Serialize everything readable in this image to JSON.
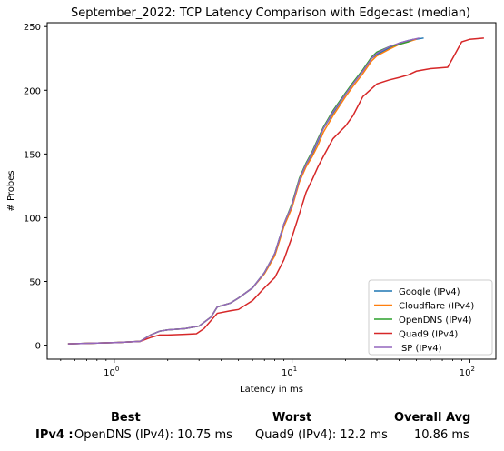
{
  "chart_data": {
    "type": "line",
    "title": "September_2022: TCP Latency Comparison with Edgecast (median)",
    "xlabel": "Latency in ms",
    "ylabel": "# Probes",
    "xscale": "log",
    "xlim": [
      0.42,
      140
    ],
    "ylim": [
      -11,
      253
    ],
    "xticks": [
      {
        "value": 1,
        "base": "10",
        "exp": "0"
      },
      {
        "value": 10,
        "base": "10",
        "exp": "1"
      },
      {
        "value": 100,
        "base": "10",
        "exp": "2"
      }
    ],
    "yticks": [
      0,
      50,
      100,
      150,
      200,
      250
    ],
    "grid": false,
    "legend_position": "lower-right",
    "series": [
      {
        "name": "Google (IPv4)",
        "color": "#1f77b4",
        "points": [
          [
            0.55,
            1
          ],
          [
            1.0,
            2
          ],
          [
            1.4,
            3
          ],
          [
            1.6,
            8
          ],
          [
            1.8,
            11
          ],
          [
            2.0,
            12
          ],
          [
            2.5,
            13
          ],
          [
            3.0,
            15
          ],
          [
            3.5,
            22
          ],
          [
            3.8,
            30
          ],
          [
            4.5,
            33
          ],
          [
            5.0,
            37
          ],
          [
            6.0,
            45
          ],
          [
            7.0,
            57
          ],
          [
            8.0,
            72
          ],
          [
            9.0,
            95
          ],
          [
            10.0,
            110
          ],
          [
            11.0,
            130
          ],
          [
            12.0,
            142
          ],
          [
            13.0,
            150
          ],
          [
            14.0,
            160
          ],
          [
            15.0,
            170
          ],
          [
            17.0,
            182
          ],
          [
            20.0,
            197
          ],
          [
            22.0,
            205
          ],
          [
            25.0,
            215
          ],
          [
            28.0,
            225
          ],
          [
            30.0,
            228
          ],
          [
            35.0,
            233
          ],
          [
            40.0,
            237
          ],
          [
            45.0,
            239
          ],
          [
            55.0,
            241
          ]
        ]
      },
      {
        "name": "Cloudflare (IPv4)",
        "color": "#ff7f0e",
        "points": [
          [
            0.55,
            1
          ],
          [
            1.0,
            2
          ],
          [
            1.4,
            3
          ],
          [
            1.6,
            8
          ],
          [
            1.8,
            11
          ],
          [
            2.0,
            12
          ],
          [
            2.5,
            13
          ],
          [
            3.0,
            15
          ],
          [
            3.5,
            22
          ],
          [
            3.8,
            30
          ],
          [
            4.5,
            33
          ],
          [
            5.0,
            37
          ],
          [
            6.0,
            45
          ],
          [
            7.0,
            56
          ],
          [
            8.0,
            70
          ],
          [
            9.0,
            93
          ],
          [
            10.0,
            108
          ],
          [
            11.0,
            128
          ],
          [
            12.0,
            140
          ],
          [
            13.0,
            148
          ],
          [
            14.0,
            157
          ],
          [
            15.0,
            167
          ],
          [
            17.0,
            180
          ],
          [
            20.0,
            195
          ],
          [
            22.0,
            203
          ],
          [
            25.0,
            213
          ],
          [
            28.0,
            223
          ],
          [
            30.0,
            227
          ],
          [
            35.0,
            232
          ],
          [
            40.0,
            236
          ],
          [
            45.0,
            238
          ],
          [
            50.0,
            240
          ]
        ]
      },
      {
        "name": "OpenDNS (IPv4)",
        "color": "#2ca02c",
        "points": [
          [
            0.55,
            1
          ],
          [
            1.0,
            2
          ],
          [
            1.4,
            3
          ],
          [
            1.6,
            8
          ],
          [
            1.8,
            11
          ],
          [
            2.0,
            12
          ],
          [
            2.5,
            13
          ],
          [
            3.0,
            15
          ],
          [
            3.5,
            22
          ],
          [
            3.8,
            30
          ],
          [
            4.5,
            33
          ],
          [
            5.0,
            37
          ],
          [
            6.0,
            45
          ],
          [
            7.0,
            57
          ],
          [
            8.0,
            72
          ],
          [
            9.0,
            95
          ],
          [
            10.0,
            111
          ],
          [
            11.0,
            131
          ],
          [
            12.0,
            143
          ],
          [
            13.0,
            152
          ],
          [
            14.0,
            162
          ],
          [
            15.0,
            171
          ],
          [
            17.0,
            184
          ],
          [
            20.0,
            198
          ],
          [
            22.0,
            206
          ],
          [
            25.0,
            216
          ],
          [
            28.0,
            226
          ],
          [
            30.0,
            230
          ],
          [
            35.0,
            234
          ],
          [
            40.0,
            236
          ],
          [
            45.0,
            238
          ],
          [
            48.0,
            240
          ]
        ]
      },
      {
        "name": "Quad9 (IPv4)",
        "color": "#d62728",
        "points": [
          [
            0.55,
            1
          ],
          [
            1.0,
            2
          ],
          [
            1.4,
            3
          ],
          [
            1.6,
            6
          ],
          [
            1.8,
            8
          ],
          [
            2.0,
            8
          ],
          [
            2.5,
            8.5
          ],
          [
            2.9,
            9
          ],
          [
            3.2,
            13
          ],
          [
            3.8,
            25
          ],
          [
            4.5,
            27
          ],
          [
            5.0,
            28
          ],
          [
            6.0,
            35
          ],
          [
            7.0,
            45
          ],
          [
            8.0,
            53
          ],
          [
            9.0,
            67
          ],
          [
            10.0,
            85
          ],
          [
            11.0,
            103
          ],
          [
            12.0,
            120
          ],
          [
            13.0,
            130
          ],
          [
            14.0,
            140
          ],
          [
            15.0,
            148
          ],
          [
            17.0,
            162
          ],
          [
            20.0,
            172
          ],
          [
            22.0,
            180
          ],
          [
            25.0,
            195
          ],
          [
            30.0,
            205
          ],
          [
            35.0,
            208
          ],
          [
            40.0,
            210
          ],
          [
            45.0,
            212
          ],
          [
            50.0,
            215
          ],
          [
            60.0,
            217
          ],
          [
            75.0,
            218
          ],
          [
            80.0,
            225
          ],
          [
            90.0,
            238
          ],
          [
            100.0,
            240
          ],
          [
            120.0,
            241
          ]
        ]
      },
      {
        "name": "ISP (IPv4)",
        "color": "#9467bd",
        "points": [
          [
            0.55,
            1
          ],
          [
            1.0,
            2
          ],
          [
            1.4,
            3
          ],
          [
            1.6,
            8
          ],
          [
            1.8,
            11
          ],
          [
            2.0,
            12
          ],
          [
            2.5,
            13
          ],
          [
            3.0,
            15
          ],
          [
            3.5,
            22
          ],
          [
            3.8,
            30
          ],
          [
            4.5,
            33
          ],
          [
            5.0,
            37
          ],
          [
            6.0,
            45
          ],
          [
            7.0,
            57
          ],
          [
            8.0,
            72
          ],
          [
            9.0,
            95
          ],
          [
            10.0,
            110
          ],
          [
            11.0,
            130
          ],
          [
            12.0,
            142
          ],
          [
            13.0,
            151
          ],
          [
            14.0,
            161
          ],
          [
            15.0,
            170
          ],
          [
            17.0,
            183
          ],
          [
            20.0,
            197
          ],
          [
            22.0,
            205
          ],
          [
            25.0,
            215
          ],
          [
            28.0,
            225
          ],
          [
            30.0,
            229
          ],
          [
            35.0,
            234
          ],
          [
            40.0,
            237
          ],
          [
            45.0,
            239
          ],
          [
            52.0,
            241
          ]
        ]
      }
    ]
  },
  "summary": {
    "best_header": "Best",
    "worst_header": "Worst",
    "avg_header": "Overall Avg",
    "row_label": "IPv4 :",
    "best_value": "OpenDNS (IPv4): 10.75 ms",
    "worst_value": "Quad9 (IPv4): 12.2 ms",
    "avg_value": "10.86 ms"
  }
}
